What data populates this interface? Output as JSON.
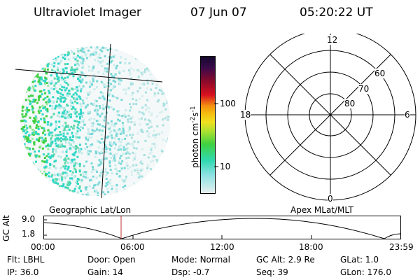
{
  "header": {
    "title": "Ultraviolet Imager",
    "date": "07 Jun 07",
    "time": "05:20:22 UT"
  },
  "colorbar": {
    "label": "photon cm",
    "label_exp1": "-2",
    "label_mid": "s",
    "label_exp2": "-1",
    "ticks": [
      "100",
      "10"
    ]
  },
  "polar": {
    "mlt_labels": {
      "top": "12",
      "left": "18",
      "right": "6",
      "bottom": "0"
    },
    "lat_labels": [
      "60",
      "70",
      "80"
    ]
  },
  "orbit": {
    "left_title": "Geographic Lat/Lon",
    "right_title": "Apex MLat/MLT",
    "ylabel": "GC Alt",
    "ytick_high": "9.0",
    "ytick_low": "1.8",
    "xticks": [
      "00:00",
      "06:00",
      "12:00",
      "18:00",
      "23:59"
    ]
  },
  "info": {
    "row1": [
      {
        "label": "Flt:",
        "value": "LBHL"
      },
      {
        "label": "Door:",
        "value": "Open"
      },
      {
        "label": "Mode:",
        "value": "Normal"
      },
      {
        "label": "GC Alt:",
        "value": "2.9 Re"
      },
      {
        "label": "GLat:",
        "value": "1.0"
      }
    ],
    "row2": [
      {
        "label": "IP:",
        "value": "36.0"
      },
      {
        "label": "Gain:",
        "value": "14"
      },
      {
        "label": "Dsp:",
        "value": "-0.7"
      },
      {
        "label": "Seq:",
        "value": "39"
      },
      {
        "label": "GLon:",
        "value": "176.0"
      }
    ]
  },
  "colors": {
    "cb_high": "#1a0a3a",
    "cb_red": "#d81020",
    "cb_orange": "#f49010",
    "cb_yellow": "#f0e020",
    "cb_green": "#40d040",
    "cb_cyan": "#30d8c8",
    "cb_low": "#e8f0f0",
    "marker": "#c03030"
  }
}
